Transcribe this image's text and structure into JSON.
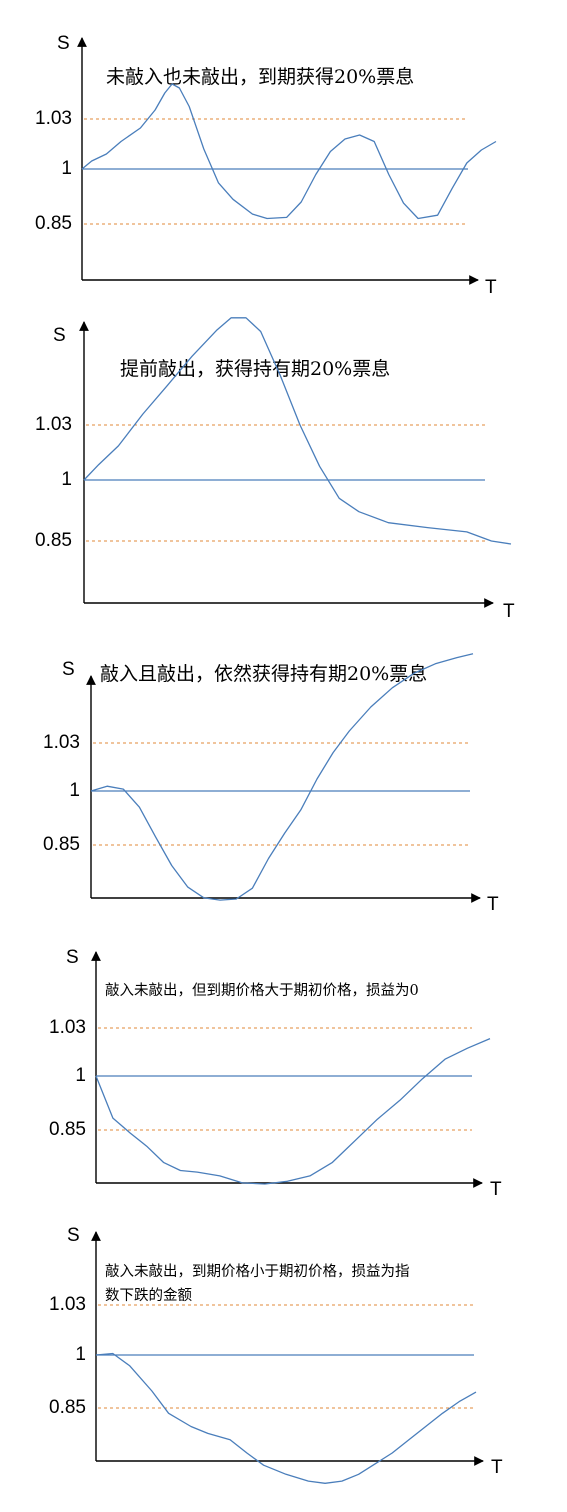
{
  "axis_labels": {
    "y": "S",
    "x": "T"
  },
  "levels": {
    "upper": "1.03",
    "initial": "1",
    "lower": "0.85"
  },
  "colors": {
    "path": "#4a7ebb",
    "initial_line": "#4a7ebb",
    "barrier": "#e0893a",
    "axis": "#000000"
  },
  "panels": [
    {
      "caption": [
        "未敲入也未敲出，到期获得20%票息"
      ],
      "path": [
        [
          0,
          0
        ],
        [
          0.02,
          0.16
        ],
        [
          0.05,
          0.3
        ],
        [
          0.08,
          0.55
        ],
        [
          0.12,
          0.82
        ],
        [
          0.15,
          1.18
        ],
        [
          0.17,
          1.52
        ],
        [
          0.185,
          1.7
        ],
        [
          0.2,
          1.62
        ],
        [
          0.22,
          1.25
        ],
        [
          0.25,
          0.4
        ],
        [
          0.28,
          -0.25
        ],
        [
          0.31,
          -0.55
        ],
        [
          0.35,
          -0.82
        ],
        [
          0.38,
          -0.9
        ],
        [
          0.42,
          -0.88
        ],
        [
          0.45,
          -0.6
        ],
        [
          0.48,
          -0.1
        ],
        [
          0.51,
          0.35
        ],
        [
          0.54,
          0.6
        ],
        [
          0.57,
          0.68
        ],
        [
          0.6,
          0.55
        ],
        [
          0.63,
          -0.1
        ],
        [
          0.66,
          -0.62
        ],
        [
          0.69,
          -0.9
        ],
        [
          0.73,
          -0.84
        ],
        [
          0.76,
          -0.35
        ],
        [
          0.79,
          0.12
        ],
        [
          0.82,
          0.38
        ],
        [
          0.85,
          0.55
        ]
      ]
    },
    {
      "caption": [
        "提前敲出，获得持有期20%票息"
      ],
      "path": [
        [
          0,
          0
        ],
        [
          0.03,
          0.28
        ],
        [
          0.07,
          0.62
        ],
        [
          0.12,
          1.2
        ],
        [
          0.17,
          1.72
        ],
        [
          0.22,
          2.25
        ],
        [
          0.27,
          2.72
        ],
        [
          0.3,
          2.95
        ],
        [
          0.33,
          2.95
        ],
        [
          0.36,
          2.7
        ],
        [
          0.4,
          1.9
        ],
        [
          0.44,
          1.0
        ],
        [
          0.48,
          0.25
        ],
        [
          0.52,
          -0.3
        ],
        [
          0.56,
          -0.52
        ],
        [
          0.62,
          -0.7
        ],
        [
          0.7,
          -0.78
        ],
        [
          0.78,
          -0.85
        ],
        [
          0.83,
          -1.0
        ],
        [
          0.87,
          -1.05
        ]
      ]
    },
    {
      "caption": [
        "敲入且敲出，依然获得持有期20%票息"
      ],
      "path": [
        [
          0,
          0
        ],
        [
          0.03,
          0.1
        ],
        [
          0.06,
          0.04
        ],
        [
          0.09,
          -0.3
        ],
        [
          0.12,
          -0.85
        ],
        [
          0.15,
          -1.38
        ],
        [
          0.18,
          -1.78
        ],
        [
          0.21,
          -1.98
        ],
        [
          0.24,
          -2.02
        ],
        [
          0.27,
          -2.0
        ],
        [
          0.3,
          -1.8
        ],
        [
          0.33,
          -1.25
        ],
        [
          0.36,
          -0.78
        ],
        [
          0.39,
          -0.35
        ],
        [
          0.42,
          0.25
        ],
        [
          0.45,
          0.8
        ],
        [
          0.48,
          1.25
        ],
        [
          0.52,
          1.75
        ],
        [
          0.56,
          2.15
        ],
        [
          0.6,
          2.45
        ],
        [
          0.64,
          2.65
        ],
        [
          0.68,
          2.78
        ],
        [
          0.71,
          2.86
        ]
      ]
    },
    {
      "caption": [
        "敲入未敲出，但到期价格大于期初价格，损益为0"
      ],
      "path": [
        [
          0,
          0
        ],
        [
          0.03,
          -0.78
        ],
        [
          0.06,
          -1.05
        ],
        [
          0.09,
          -1.3
        ],
        [
          0.12,
          -1.6
        ],
        [
          0.15,
          -1.75
        ],
        [
          0.18,
          -1.78
        ],
        [
          0.22,
          -1.85
        ],
        [
          0.26,
          -1.98
        ],
        [
          0.3,
          -2.0
        ],
        [
          0.34,
          -1.95
        ],
        [
          0.38,
          -1.85
        ],
        [
          0.42,
          -1.6
        ],
        [
          0.46,
          -1.2
        ],
        [
          0.5,
          -0.8
        ],
        [
          0.54,
          -0.45
        ],
        [
          0.58,
          -0.05
        ],
        [
          0.62,
          0.35
        ],
        [
          0.66,
          0.58
        ],
        [
          0.7,
          0.78
        ]
      ]
    },
    {
      "caption": [
        "敲入未敲出，到期价格小于期初价格，损益为指",
        "数下跌的金额"
      ],
      "path": [
        [
          0,
          0
        ],
        [
          0.03,
          0.03
        ],
        [
          0.06,
          -0.2
        ],
        [
          0.1,
          -0.68
        ],
        [
          0.13,
          -1.1
        ],
        [
          0.17,
          -1.35
        ],
        [
          0.2,
          -1.48
        ],
        [
          0.24,
          -1.6
        ],
        [
          0.27,
          -1.85
        ],
        [
          0.3,
          -2.08
        ],
        [
          0.34,
          -2.25
        ],
        [
          0.38,
          -2.38
        ],
        [
          0.41,
          -2.42
        ],
        [
          0.44,
          -2.38
        ],
        [
          0.47,
          -2.25
        ],
        [
          0.5,
          -2.05
        ],
        [
          0.53,
          -1.85
        ],
        [
          0.56,
          -1.6
        ],
        [
          0.59,
          -1.35
        ],
        [
          0.62,
          -1.1
        ],
        [
          0.65,
          -0.88
        ],
        [
          0.68,
          -0.7
        ]
      ]
    }
  ]
}
